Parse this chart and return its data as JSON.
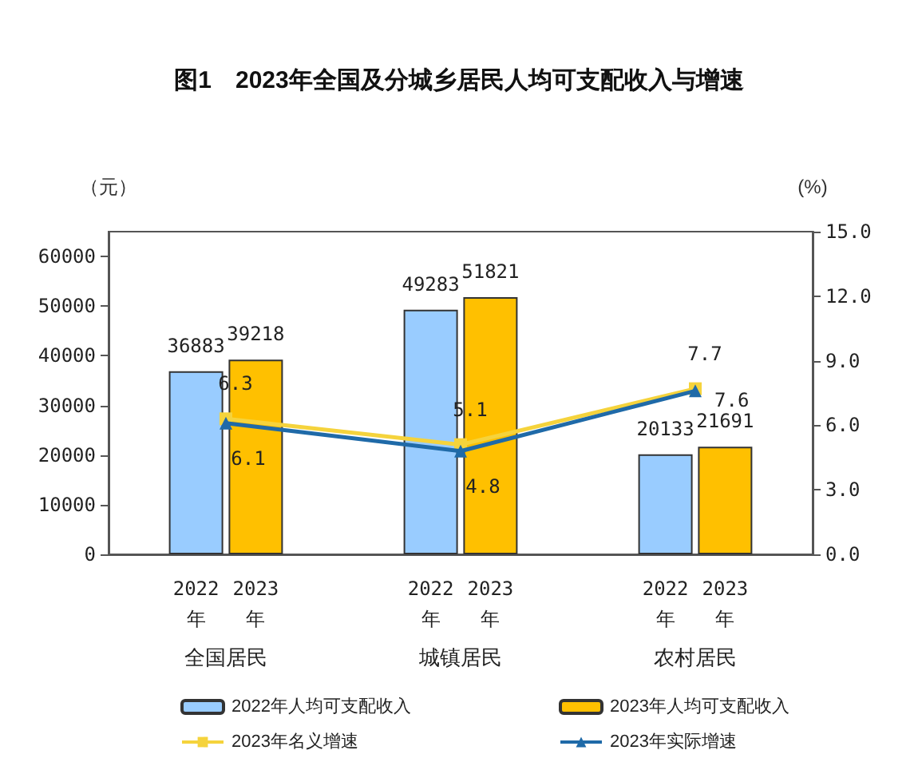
{
  "chart_data": {
    "type": "bar",
    "title": "图1　2023年全国及分城乡居民人均可支配收入与增速",
    "ylabel": "（元）",
    "y2label": "(%)",
    "categories": [
      "全国居民",
      "城镇居民",
      "农村居民"
    ],
    "series": [
      {
        "name": "2022年人均可支配收入",
        "color": "#99ccff",
        "values": [
          36883,
          49283,
          20133
        ]
      },
      {
        "name": "2023年人均可支配收入",
        "color": "#ffc000",
        "values": [
          39218,
          51821,
          21691
        ]
      },
      {
        "name": "2023年名义增速",
        "type": "line",
        "axis": "y2",
        "color": "#f5d33c",
        "marker": "square",
        "values": [
          6.3,
          5.1,
          7.7
        ]
      },
      {
        "name": "2023年实际增速",
        "type": "line",
        "axis": "y2",
        "color": "#1f6aa8",
        "marker": "triangle",
        "values": [
          6.1,
          4.8,
          7.6
        ]
      }
    ],
    "annotations": [
      "2022年",
      "2023年",
      "2022年",
      "2023年",
      "2022年",
      "2023年"
    ],
    "ylim": [
      0,
      65000
    ],
    "yticks": [
      0,
      10000,
      20000,
      30000,
      40000,
      50000,
      60000
    ],
    "y2lim": [
      0,
      15
    ],
    "y2ticks": [
      {
        "value": 0,
        "label": "0.0"
      },
      {
        "value": 3,
        "label": "3.0"
      },
      {
        "value": 6,
        "label": "6.0"
      },
      {
        "value": 9,
        "label": "9.0"
      },
      {
        "value": 12,
        "label": "12.0"
      },
      {
        "value": 15,
        "label": "15.0"
      }
    ],
    "data_labels": true,
    "grid": false,
    "legend": "bottom"
  }
}
